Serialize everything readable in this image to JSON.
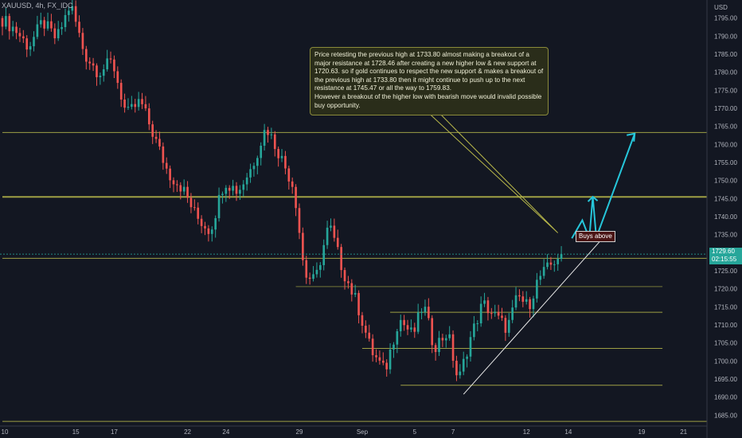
{
  "symbol_label": "XAUUSD, 4h, FX_IDC",
  "currency_label": "USD",
  "annotation_text": "Price retesting the previous high at 1733.80 almost making a breakout of a major resistance at 1728.46 after creating a new higher low & new support at 1720.63. so if gold continues to respect the new support & makes a breakout of the previous high at 1733.80 then it might continue to push up to the next resistance at 1745.47 or all the way to 1759.83.\nHowever a breakout of the higher low with bearish move would invalid possible buy opportunity.",
  "buys_label": "Buys above",
  "last_price": "1729.60",
  "countdown": "02:15:55",
  "colors": {
    "background": "#131722",
    "up": "#26a69a",
    "down": "#ef5350",
    "level_line": "#b7b74a",
    "trendline": "#e8e8e8",
    "arrow": "#26c6da",
    "axis_text": "#b2b5be"
  },
  "chart_data": {
    "type": "candlestick",
    "symbol": "XAUUSD",
    "timeframe": "4h",
    "y_axis": {
      "range": [
        1682,
        1800
      ],
      "ticks": [
        1685,
        1690,
        1695,
        1700,
        1705,
        1710,
        1715,
        1720,
        1725,
        1730,
        1735,
        1740,
        1745,
        1750,
        1755,
        1760,
        1765,
        1770,
        1775,
        1780,
        1785,
        1790,
        1795
      ]
    },
    "x_axis": {
      "range": [
        0,
        201
      ],
      "ticks": [
        {
          "label": "10",
          "index": 0
        },
        {
          "label": "15",
          "index": 21
        },
        {
          "label": "17",
          "index": 32
        },
        {
          "label": "22",
          "index": 53
        },
        {
          "label": "24",
          "index": 64
        },
        {
          "label": "29",
          "index": 85
        },
        {
          "label": "Sep",
          "index": 103
        },
        {
          "label": "5",
          "index": 118
        },
        {
          "label": "7",
          "index": 129
        },
        {
          "label": "12",
          "index": 150
        },
        {
          "label": "14",
          "index": 162
        },
        {
          "label": "19",
          "index": 183
        },
        {
          "label": "21",
          "index": 195
        }
      ]
    },
    "price_path": [
      [
        0,
        1795
      ],
      [
        4,
        1792
      ],
      [
        8,
        1787
      ],
      [
        12,
        1794
      ],
      [
        16,
        1789
      ],
      [
        20,
        1799
      ],
      [
        24,
        1785
      ],
      [
        28,
        1780
      ],
      [
        32,
        1783
      ],
      [
        36,
        1768
      ],
      [
        40,
        1772
      ],
      [
        44,
        1762
      ],
      [
        48,
        1752
      ],
      [
        52,
        1748
      ],
      [
        56,
        1740
      ],
      [
        60,
        1736
      ],
      [
        64,
        1750
      ],
      [
        68,
        1747
      ],
      [
        72,
        1754
      ],
      [
        76,
        1765
      ],
      [
        80,
        1757
      ],
      [
        84,
        1748
      ],
      [
        87,
        1724
      ],
      [
        90,
        1722
      ],
      [
        94,
        1738
      ],
      [
        98,
        1725
      ],
      [
        102,
        1716
      ],
      [
        106,
        1703
      ],
      [
        110,
        1697
      ],
      [
        114,
        1712
      ],
      [
        118,
        1707
      ],
      [
        121,
        1716
      ],
      [
        124,
        1704
      ],
      [
        128,
        1708
      ],
      [
        131,
        1694
      ],
      [
        134,
        1705
      ],
      [
        138,
        1716
      ],
      [
        142,
        1712
      ],
      [
        145,
        1709
      ],
      [
        148,
        1718
      ],
      [
        151,
        1715
      ],
      [
        154,
        1723
      ],
      [
        157,
        1726
      ],
      [
        160,
        1729.6
      ]
    ],
    "levels": [
      {
        "price": 1763.3,
        "x_from": 0
      },
      {
        "price": 1745.47,
        "x_from": 0
      },
      {
        "price": 1728.46,
        "x_from": 0
      },
      {
        "price": 1720.63,
        "x_from": 84
      },
      {
        "price": 1713.5,
        "x_from": 111
      },
      {
        "price": 1703.5,
        "x_from": 103
      },
      {
        "price": 1693.3,
        "x_from": 114
      },
      {
        "price": 1683.3,
        "x_from": 0
      }
    ],
    "trendline": [
      [
        132,
        1690.8
      ],
      [
        172,
        1734.2
      ]
    ],
    "projection_path": [
      [
        163,
        1734
      ],
      [
        166,
        1739
      ],
      [
        168,
        1734
      ],
      [
        169,
        1745.5
      ],
      [
        170,
        1734.2
      ],
      [
        181,
        1763
      ]
    ],
    "callout_pointer": [
      159,
      1735.5
    ],
    "buys_above_price": 1733.8,
    "last_price": 1729.6
  }
}
